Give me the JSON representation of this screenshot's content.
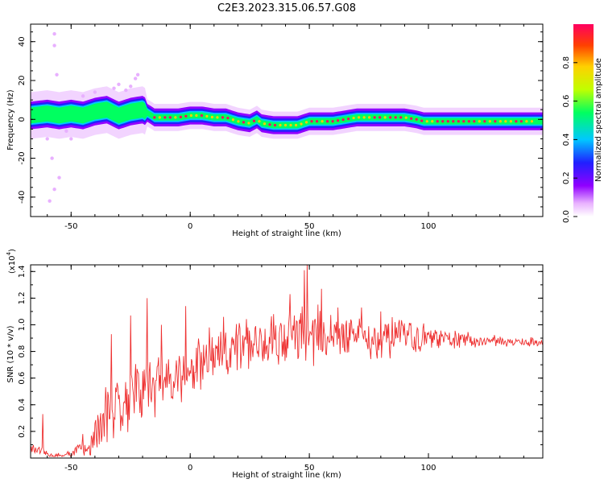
{
  "title": "C2E3.2023.315.06.57.G08",
  "chart_data": [
    {
      "type": "heatmap",
      "xlabel": "Height of straight line (km)",
      "ylabel": "Frequency (Hz)",
      "xlim": [
        -67,
        148
      ],
      "ylim": [
        -50,
        49
      ],
      "x_ticks": [
        -50,
        0,
        50,
        100
      ],
      "y_ticks": [
        -40,
        -20,
        0,
        20,
        40
      ],
      "colorbar": {
        "label": "Normalized spectral amplitude",
        "range": [
          0,
          1
        ],
        "ticks": [
          "0.0",
          "0.2",
          "0.4",
          "0.6",
          "0.8"
        ],
        "colors": [
          "#ffffff",
          "#e8b0ff",
          "#9000ff",
          "#2020ff",
          "#00c8ff",
          "#00ff60",
          "#c0ff00",
          "#ffd000",
          "#ff4000",
          "#ff0060"
        ]
      },
      "ridge": {
        "x": [
          -67,
          -60,
          -55,
          -50,
          -45,
          -40,
          -35,
          -30,
          -25,
          -20,
          -15,
          -10,
          -5,
          0,
          5,
          10,
          15,
          20,
          25,
          28,
          30,
          35,
          40,
          45,
          50,
          55,
          60,
          65,
          70,
          75,
          80,
          85,
          90,
          95,
          98,
          100,
          105,
          110,
          115,
          120,
          125,
          130,
          135,
          140,
          145,
          148
        ],
        "y": [
          2,
          3,
          2,
          3,
          2,
          4,
          5,
          2,
          4,
          5,
          1,
          1,
          1,
          2,
          2,
          1,
          1,
          -1,
          -2,
          0,
          -2,
          -3,
          -3,
          -3,
          -1,
          -1,
          -1,
          0,
          1,
          1,
          1,
          1,
          1,
          0,
          -1,
          -1,
          -1,
          -1,
          -1,
          -1,
          -1,
          -1,
          -1,
          -1,
          -1,
          -1
        ]
      },
      "outliers": {
        "x": [
          -57,
          -57,
          -56,
          -60,
          -58,
          -55,
          -57,
          -59,
          -52,
          -50,
          -45,
          -40,
          -36,
          -32,
          -30,
          -27,
          -25,
          -22,
          -23
        ],
        "y": [
          44,
          38,
          23,
          -10,
          -20,
          -30,
          -36,
          -42,
          -6,
          -10,
          12,
          14,
          10,
          16,
          18,
          15,
          17,
          23,
          21
        ]
      },
      "color_scale_note": ""
    },
    {
      "type": "line",
      "xlabel": "Height of straight line (km)",
      "ylabel": "SNR (10 * v/v)",
      "y_multiplier": "(x10",
      "y_multiplier_exp": "4",
      "xlim": [
        -67,
        148
      ],
      "ylim": [
        0,
        14500
      ],
      "x_ticks": [
        -50,
        0,
        50,
        100
      ],
      "y_ticks": [
        2000,
        4000,
        6000,
        8000,
        10000,
        12000,
        14000
      ],
      "y_tick_labels": [
        "0.2",
        "0.4",
        "0.6",
        "0.8",
        "1.0",
        "1.2",
        "1.4"
      ],
      "series_color": "#ee3030",
      "envelope_x": [
        -67,
        -62,
        -58,
        -54,
        -50,
        -45,
        -40,
        -37,
        -34,
        -30,
        -25,
        -20,
        -15,
        -10,
        -5,
        0,
        5,
        10,
        15,
        20,
        25,
        30,
        35,
        40,
        45,
        50,
        55,
        60,
        65,
        70,
        75,
        80,
        85,
        90,
        95,
        100,
        105,
        110,
        115,
        120,
        125,
        130,
        135,
        140,
        145,
        148
      ],
      "envelope_mean": [
        700,
        400,
        200,
        150,
        300,
        800,
        1600,
        2600,
        3500,
        4200,
        4800,
        5300,
        5600,
        5900,
        6300,
        6500,
        6900,
        7400,
        7700,
        8200,
        8500,
        8800,
        9000,
        9100,
        9200,
        9300,
        9300,
        9200,
        9200,
        9100,
        9100,
        9000,
        9000,
        9000,
        9000,
        9000,
        8900,
        8900,
        8900,
        8800,
        8800,
        8800,
        8700,
        8700,
        8700,
        8700
      ],
      "envelope_spread": [
        500,
        400,
        300,
        250,
        400,
        900,
        2000,
        2800,
        3000,
        3200,
        3300,
        3200,
        3000,
        2900,
        2800,
        2700,
        2600,
        2500,
        2500,
        2400,
        2400,
        2400,
        2400,
        2400,
        2600,
        2700,
        2400,
        2300,
        2100,
        2000,
        1900,
        1800,
        1600,
        1500,
        1300,
        1100,
        900,
        800,
        700,
        600,
        550,
        500,
        450,
        400,
        400,
        400
      ],
      "peak_x": [
        -62,
        -45,
        -40,
        -33,
        -25,
        -18,
        -12,
        -2,
        8,
        14,
        23,
        35,
        42,
        48,
        49,
        55,
        62,
        72,
        80,
        86,
        90
      ],
      "peak_y": [
        3300,
        1800,
        2600,
        9300,
        10700,
        12000,
        10000,
        11400,
        9800,
        10600,
        9100,
        10800,
        12300,
        14100,
        14600,
        12700,
        11300,
        11300,
        11000,
        10200,
        10100
      ]
    }
  ]
}
